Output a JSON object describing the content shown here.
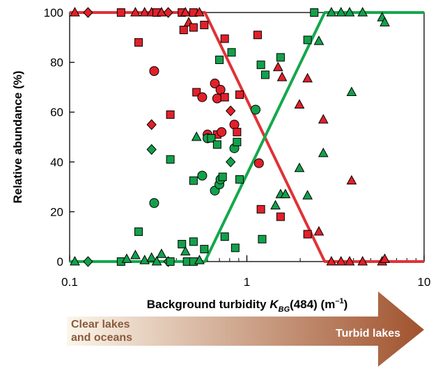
{
  "chart_data": {
    "type": "scatter",
    "xscale": "log",
    "xlim": [
      0.1,
      10
    ],
    "ylim": [
      0,
      100
    ],
    "grid": false,
    "xticks": [
      "0.1",
      "1",
      "10"
    ],
    "yticks": [
      "0",
      "20",
      "40",
      "60",
      "80",
      "100"
    ],
    "ylabel": "Relative abundance (%)",
    "xlabel": {
      "prefix": "Background turbidity ",
      "symbol": "K",
      "subscript": "BG",
      "middle": "(484) (m",
      "superscript": "–1",
      "suffix": ")"
    },
    "arrow": {
      "left_label_line1": "Clear lakes",
      "left_label_line2": "and oceans",
      "right_label": "Turbid lakes",
      "left_color": "#fbf6ea",
      "right_color": "#a0522d",
      "left_text_color": "#8b5a3c",
      "right_text_color": "#ffffff"
    },
    "colors": {
      "red": "#e2202a",
      "green": "#12a14b",
      "red_line": "#e03236",
      "green_line": "#14a84c"
    },
    "lines": [
      {
        "color": "red",
        "x": [
          0.1,
          0.58,
          2.75,
          10
        ],
        "y": [
          100,
          100,
          0,
          0
        ]
      },
      {
        "color": "green",
        "x": [
          0.1,
          0.58,
          2.75,
          10
        ],
        "y": [
          0,
          0,
          100,
          100
        ]
      }
    ],
    "points": [
      {
        "s": "triangle",
        "c": "red",
        "x": 0.107,
        "y": 100
      },
      {
        "s": "diamond",
        "c": "red",
        "x": 0.127,
        "y": 100
      },
      {
        "s": "square",
        "c": "red",
        "x": 0.195,
        "y": 100
      },
      {
        "s": "triangle",
        "c": "red",
        "x": 0.235,
        "y": 100
      },
      {
        "s": "square",
        "c": "red",
        "x": 0.245,
        "y": 88
      },
      {
        "s": "triangle",
        "c": "red",
        "x": 0.265,
        "y": 100
      },
      {
        "s": "triangle",
        "c": "red",
        "x": 0.29,
        "y": 100
      },
      {
        "s": "square",
        "c": "red",
        "x": 0.31,
        "y": 100
      },
      {
        "s": "triangle",
        "c": "red",
        "x": 0.33,
        "y": 100
      },
      {
        "s": "diamond",
        "c": "red",
        "x": 0.36,
        "y": 100
      },
      {
        "s": "square",
        "c": "red",
        "x": 0.43,
        "y": 100
      },
      {
        "s": "triangle",
        "c": "red",
        "x": 0.45,
        "y": 100
      },
      {
        "s": "square",
        "c": "red",
        "x": 0.5,
        "y": 100
      },
      {
        "s": "triangle",
        "c": "red",
        "x": 0.54,
        "y": 100
      },
      {
        "s": "circle",
        "c": "red",
        "x": 0.3,
        "y": 76.5
      },
      {
        "s": "diamond",
        "c": "red",
        "x": 0.29,
        "y": 55
      },
      {
        "s": "square",
        "c": "red",
        "x": 0.37,
        "y": 59
      },
      {
        "s": "square",
        "c": "red",
        "x": 0.44,
        "y": 93
      },
      {
        "s": "triangle",
        "c": "red",
        "x": 0.47,
        "y": 96
      },
      {
        "s": "square",
        "c": "red",
        "x": 0.5,
        "y": 94
      },
      {
        "s": "square",
        "c": "red",
        "x": 0.575,
        "y": 95
      },
      {
        "s": "square",
        "c": "red",
        "x": 0.52,
        "y": 68
      },
      {
        "s": "circle",
        "c": "red",
        "x": 0.56,
        "y": 66
      },
      {
        "s": "circle",
        "c": "red",
        "x": 0.66,
        "y": 71.5
      },
      {
        "s": "circle",
        "c": "red",
        "x": 0.68,
        "y": 65.5
      },
      {
        "s": "circle",
        "c": "red",
        "x": 0.71,
        "y": 69
      },
      {
        "s": "square",
        "c": "red",
        "x": 0.75,
        "y": 66
      },
      {
        "s": "square",
        "c": "red",
        "x": 0.75,
        "y": 89.5
      },
      {
        "s": "diamond",
        "c": "red",
        "x": 0.81,
        "y": 60.5
      },
      {
        "s": "circle",
        "c": "red",
        "x": 0.85,
        "y": 55
      },
      {
        "s": "square",
        "c": "red",
        "x": 0.88,
        "y": 52
      },
      {
        "s": "square",
        "c": "red",
        "x": 0.91,
        "y": 67
      },
      {
        "s": "circle",
        "c": "red",
        "x": 0.6,
        "y": 51
      },
      {
        "s": "square",
        "c": "red",
        "x": 0.68,
        "y": 51
      },
      {
        "s": "circle",
        "c": "red",
        "x": 0.72,
        "y": 52
      },
      {
        "s": "square",
        "c": "red",
        "x": 1.15,
        "y": 91
      },
      {
        "s": "circle",
        "c": "red",
        "x": 1.17,
        "y": 39.5
      },
      {
        "s": "square",
        "c": "red",
        "x": 1.2,
        "y": 21
      },
      {
        "s": "triangle",
        "c": "red",
        "x": 1.5,
        "y": 78
      },
      {
        "s": "square",
        "c": "red",
        "x": 1.55,
        "y": 18
      },
      {
        "s": "triangle",
        "c": "red",
        "x": 1.58,
        "y": 74
      },
      {
        "s": "triangle",
        "c": "red",
        "x": 1.98,
        "y": 63
      },
      {
        "s": "triangle",
        "c": "red",
        "x": 2.2,
        "y": 73.5
      },
      {
        "s": "square",
        "c": "red",
        "x": 2.2,
        "y": 11
      },
      {
        "s": "triangle",
        "c": "red",
        "x": 2.55,
        "y": 12
      },
      {
        "s": "triangle",
        "c": "red",
        "x": 2.7,
        "y": 57
      },
      {
        "s": "triangle",
        "c": "red",
        "x": 3.0,
        "y": 0
      },
      {
        "s": "triangle",
        "c": "red",
        "x": 3.4,
        "y": 0
      },
      {
        "s": "triangle",
        "c": "red",
        "x": 3.8,
        "y": 0
      },
      {
        "s": "triangle",
        "c": "red",
        "x": 3.9,
        "y": 32.5
      },
      {
        "s": "triangle",
        "c": "red",
        "x": 4.5,
        "y": 0
      },
      {
        "s": "triangle",
        "c": "red",
        "x": 5.8,
        "y": 0
      },
      {
        "s": "triangle",
        "c": "red",
        "x": 6.0,
        "y": 1
      },
      {
        "s": "triangle",
        "c": "green",
        "x": 0.107,
        "y": 0
      },
      {
        "s": "diamond",
        "c": "green",
        "x": 0.127,
        "y": 0
      },
      {
        "s": "square",
        "c": "green",
        "x": 0.195,
        "y": 0
      },
      {
        "s": "triangle",
        "c": "green",
        "x": 0.21,
        "y": 1
      },
      {
        "s": "triangle",
        "c": "green",
        "x": 0.235,
        "y": 2.5
      },
      {
        "s": "square",
        "c": "green",
        "x": 0.245,
        "y": 12
      },
      {
        "s": "triangle",
        "c": "green",
        "x": 0.265,
        "y": 0.5
      },
      {
        "s": "triangle",
        "c": "green",
        "x": 0.29,
        "y": 1.5
      },
      {
        "s": "triangle",
        "c": "green",
        "x": 0.31,
        "y": 0
      },
      {
        "s": "triangle",
        "c": "green",
        "x": 0.33,
        "y": 3
      },
      {
        "s": "diamond",
        "c": "green",
        "x": 0.36,
        "y": 0
      },
      {
        "s": "square",
        "c": "green",
        "x": 0.37,
        "y": 0
      },
      {
        "s": "square",
        "c": "green",
        "x": 0.43,
        "y": 7
      },
      {
        "s": "triangle",
        "c": "green",
        "x": 0.45,
        "y": 4
      },
      {
        "s": "square",
        "c": "green",
        "x": 0.5,
        "y": 8
      },
      {
        "s": "square",
        "c": "green",
        "x": 0.46,
        "y": 0
      },
      {
        "s": "square",
        "c": "green",
        "x": 0.5,
        "y": 0
      },
      {
        "s": "triangle",
        "c": "green",
        "x": 0.54,
        "y": 0.5
      },
      {
        "s": "square",
        "c": "green",
        "x": 0.575,
        "y": 5
      },
      {
        "s": "circle",
        "c": "green",
        "x": 0.3,
        "y": 23.5
      },
      {
        "s": "diamond",
        "c": "green",
        "x": 0.29,
        "y": 45
      },
      {
        "s": "square",
        "c": "green",
        "x": 0.37,
        "y": 41
      },
      {
        "s": "square",
        "c": "green",
        "x": 0.5,
        "y": 32.5
      },
      {
        "s": "circle",
        "c": "green",
        "x": 0.56,
        "y": 34.5
      },
      {
        "s": "triangle",
        "c": "green",
        "x": 0.52,
        "y": 50
      },
      {
        "s": "circle",
        "c": "green",
        "x": 0.6,
        "y": 49.5
      },
      {
        "s": "square",
        "c": "green",
        "x": 0.63,
        "y": 49.5
      },
      {
        "s": "circle",
        "c": "green",
        "x": 0.66,
        "y": 28.5
      },
      {
        "s": "square",
        "c": "green",
        "x": 0.68,
        "y": 47
      },
      {
        "s": "circle",
        "c": "green",
        "x": 0.7,
        "y": 31
      },
      {
        "s": "circle",
        "c": "green",
        "x": 0.71,
        "y": 33
      },
      {
        "s": "square",
        "c": "green",
        "x": 0.7,
        "y": 81
      },
      {
        "s": "square",
        "c": "green",
        "x": 0.73,
        "y": 34
      },
      {
        "s": "square",
        "c": "green",
        "x": 0.75,
        "y": 10
      },
      {
        "s": "diamond",
        "c": "green",
        "x": 0.81,
        "y": 40
      },
      {
        "s": "square",
        "c": "green",
        "x": 0.82,
        "y": 84
      },
      {
        "s": "circle",
        "c": "green",
        "x": 0.85,
        "y": 45.5
      },
      {
        "s": "square",
        "c": "green",
        "x": 0.86,
        "y": 5.5
      },
      {
        "s": "square",
        "c": "green",
        "x": 0.88,
        "y": 48
      },
      {
        "s": "square",
        "c": "green",
        "x": 0.91,
        "y": 33
      },
      {
        "s": "circle",
        "c": "green",
        "x": 1.12,
        "y": 61
      },
      {
        "s": "square",
        "c": "green",
        "x": 1.2,
        "y": 79
      },
      {
        "s": "square",
        "c": "green",
        "x": 1.22,
        "y": 9
      },
      {
        "s": "square",
        "c": "green",
        "x": 1.27,
        "y": 75
      },
      {
        "s": "triangle",
        "c": "green",
        "x": 1.45,
        "y": 22.5
      },
      {
        "s": "square",
        "c": "green",
        "x": 1.55,
        "y": 82
      },
      {
        "s": "triangle",
        "c": "green",
        "x": 1.55,
        "y": 27
      },
      {
        "s": "triangle",
        "c": "green",
        "x": 1.65,
        "y": 27
      },
      {
        "s": "triangle",
        "c": "green",
        "x": 1.98,
        "y": 37.5
      },
      {
        "s": "square",
        "c": "green",
        "x": 2.2,
        "y": 89
      },
      {
        "s": "triangle",
        "c": "green",
        "x": 2.2,
        "y": 26.5
      },
      {
        "s": "square",
        "c": "green",
        "x": 2.4,
        "y": 100
      },
      {
        "s": "triangle",
        "c": "green",
        "x": 2.55,
        "y": 88.5
      },
      {
        "s": "triangle",
        "c": "green",
        "x": 2.7,
        "y": 43.5
      },
      {
        "s": "triangle",
        "c": "green",
        "x": 3.0,
        "y": 100
      },
      {
        "s": "triangle",
        "c": "green",
        "x": 3.4,
        "y": 100
      },
      {
        "s": "triangle",
        "c": "green",
        "x": 3.8,
        "y": 100
      },
      {
        "s": "triangle",
        "c": "green",
        "x": 3.9,
        "y": 68
      },
      {
        "s": "triangle",
        "c": "green",
        "x": 4.5,
        "y": 100
      },
      {
        "s": "triangle",
        "c": "green",
        "x": 5.8,
        "y": 98
      },
      {
        "s": "triangle",
        "c": "green",
        "x": 6.0,
        "y": 96
      }
    ]
  }
}
